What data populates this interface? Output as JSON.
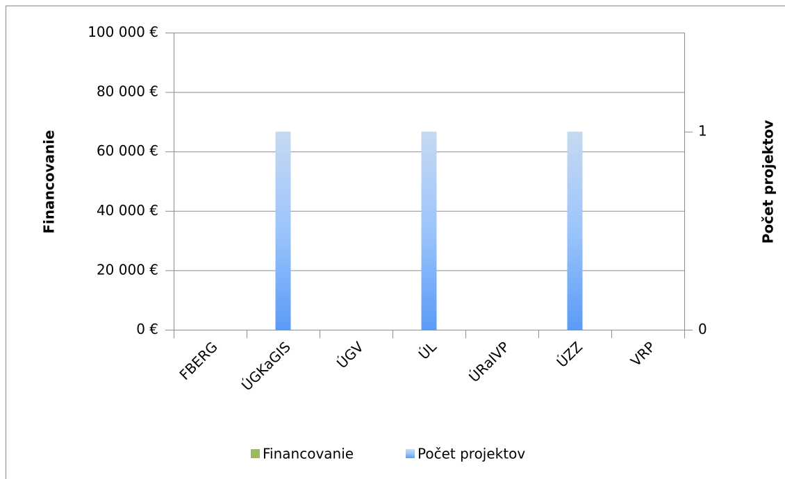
{
  "chart_data": {
    "type": "bar",
    "categories": [
      "FBERG",
      "ÚGKaGIS",
      "ÚGV",
      "ÚL",
      "ÚRaIVP",
      "ÚZZ",
      "VRP"
    ],
    "series": [
      {
        "name": "Financovanie",
        "color": "#9bbb59",
        "values": [
          0,
          0,
          0,
          0,
          0,
          0,
          0
        ]
      },
      {
        "name": "Počet projektov",
        "color": "#5b9bf8",
        "axis": "y2",
        "values": [
          0,
          1,
          0,
          1,
          0,
          1,
          0
        ]
      }
    ],
    "ylabel": "Financovanie",
    "y2label": "Počet projektov",
    "ylim": [
      0,
      100000
    ],
    "yticks": [
      {
        "value": 0,
        "label": "0 €"
      },
      {
        "value": 20000,
        "label": "20 000 €"
      },
      {
        "value": 40000,
        "label": "40 000 €"
      },
      {
        "value": 60000,
        "label": "60 000 €"
      },
      {
        "value": 80000,
        "label": "80 000 €"
      },
      {
        "value": 100000,
        "label": "100 000 €"
      }
    ],
    "y2lim": [
      0,
      1.5
    ],
    "y2ticks": [
      0,
      1
    ],
    "grid": true,
    "legend": "bottom"
  }
}
